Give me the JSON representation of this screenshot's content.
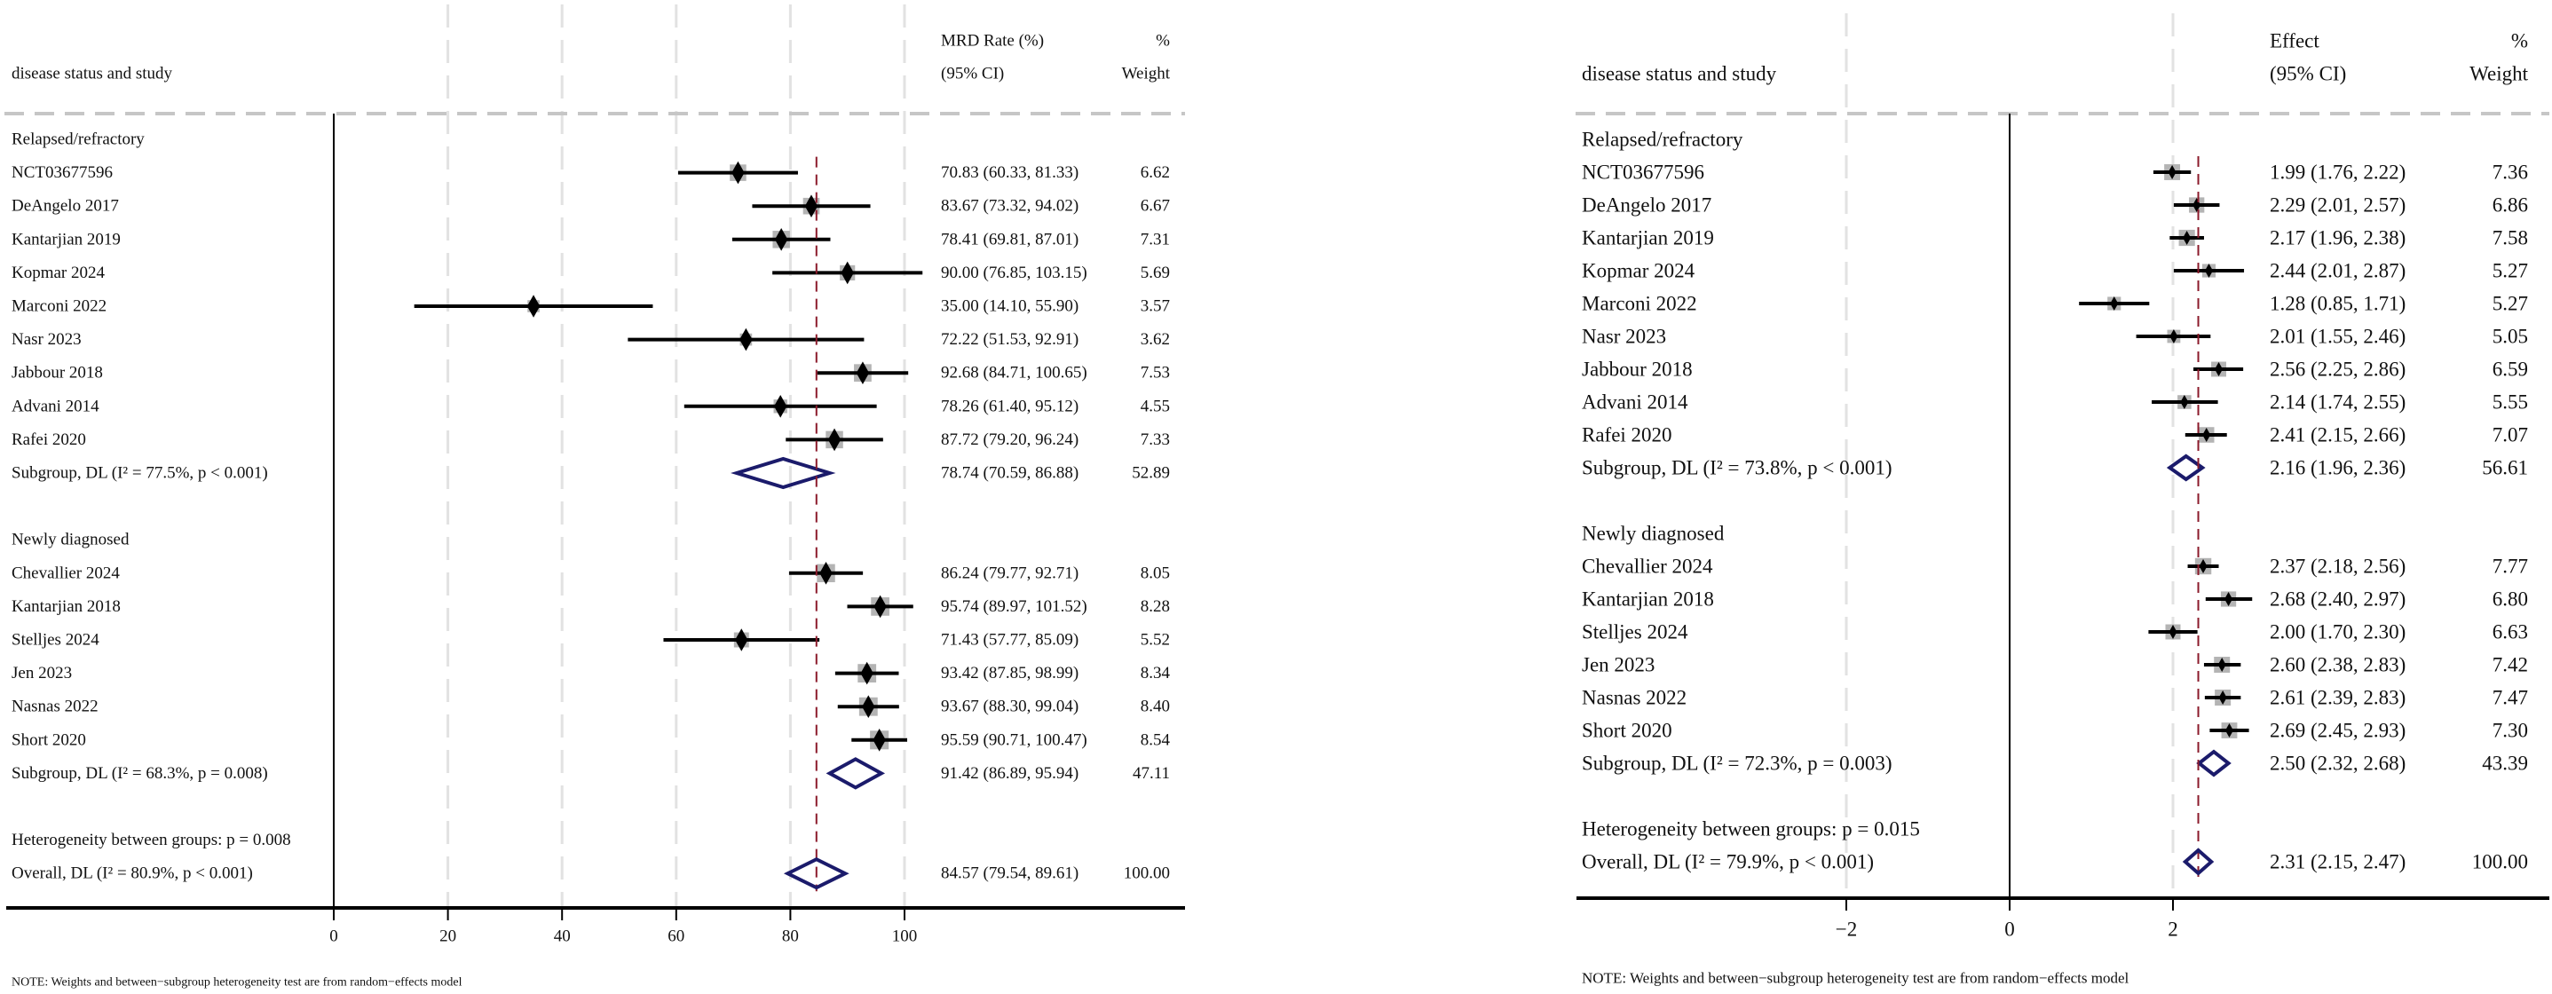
{
  "chart_data": [
    {
      "type": "forest",
      "header": {
        "study_col": "disease status and study",
        "est_line1": "MRD Rate (%)",
        "est_line2": "(95% CI)",
        "w_line1": "%",
        "w_line2": "Weight"
      },
      "xlim": [
        0,
        100
      ],
      "ticks": [
        "0",
        "20",
        "40",
        "60",
        "80",
        "100"
      ],
      "tick_values": [
        0,
        20,
        40,
        60,
        80,
        100
      ],
      "ref_line": 84.57,
      "groups": [
        {
          "label": "Relapsed/refractory",
          "studies": [
            {
              "name": "NCT03677596",
              "est": 70.83,
              "lo": 60.33,
              "hi": 81.33,
              "ci_text": "70.83 (60.33, 81.33)",
              "weight": "6.62"
            },
            {
              "name": "DeAngelo 2017",
              "est": 83.67,
              "lo": 73.32,
              "hi": 94.02,
              "ci_text": "83.67 (73.32, 94.02)",
              "weight": "6.67"
            },
            {
              "name": "Kantarjian 2019",
              "est": 78.41,
              "lo": 69.81,
              "hi": 87.01,
              "ci_text": "78.41 (69.81, 87.01)",
              "weight": "7.31"
            },
            {
              "name": "Kopmar 2024",
              "est": 90.0,
              "lo": 76.85,
              "hi": 103.15,
              "ci_text": "90.00 (76.85, 103.15)",
              "weight": "5.69"
            },
            {
              "name": "Marconi 2022",
              "est": 35.0,
              "lo": 14.1,
              "hi": 55.9,
              "ci_text": "35.00 (14.10, 55.90)",
              "weight": "3.57"
            },
            {
              "name": "Nasr 2023",
              "est": 72.22,
              "lo": 51.53,
              "hi": 92.91,
              "ci_text": "72.22 (51.53, 92.91)",
              "weight": "3.62"
            },
            {
              "name": "Jabbour 2018",
              "est": 92.68,
              "lo": 84.71,
              "hi": 100.65,
              "ci_text": "92.68 (84.71, 100.65)",
              "weight": "7.53"
            },
            {
              "name": "Advani 2014",
              "est": 78.26,
              "lo": 61.4,
              "hi": 95.12,
              "ci_text": "78.26 (61.40, 95.12)",
              "weight": "4.55"
            },
            {
              "name": "Rafei 2020",
              "est": 87.72,
              "lo": 79.2,
              "hi": 96.24,
              "ci_text": "87.72 (79.20, 96.24)",
              "weight": "7.33"
            }
          ],
          "subgroup": {
            "label": "Subgroup, DL (I² = 77.5%, p < 0.001)",
            "est": 78.74,
            "lo": 70.59,
            "hi": 86.88,
            "ci_text": "78.74 (70.59, 86.88)",
            "weight": "52.89"
          }
        },
        {
          "label": "Newly diagnosed",
          "studies": [
            {
              "name": "Chevallier 2024",
              "est": 86.24,
              "lo": 79.77,
              "hi": 92.71,
              "ci_text": "86.24 (79.77, 92.71)",
              "weight": "8.05"
            },
            {
              "name": "Kantarjian 2018",
              "est": 95.74,
              "lo": 89.97,
              "hi": 101.52,
              "ci_text": "95.74 (89.97, 101.52)",
              "weight": "8.28"
            },
            {
              "name": "Stelljes 2024",
              "est": 71.43,
              "lo": 57.77,
              "hi": 85.09,
              "ci_text": "71.43 (57.77, 85.09)",
              "weight": "5.52"
            },
            {
              "name": "Jen 2023",
              "est": 93.42,
              "lo": 87.85,
              "hi": 98.99,
              "ci_text": "93.42 (87.85, 98.99)",
              "weight": "8.34"
            },
            {
              "name": "Nasnas 2022",
              "est": 93.67,
              "lo": 88.3,
              "hi": 99.04,
              "ci_text": "93.67 (88.30, 99.04)",
              "weight": "8.40"
            },
            {
              "name": "Short 2020",
              "est": 95.59,
              "lo": 90.71,
              "hi": 100.47,
              "ci_text": "95.59 (90.71, 100.47)",
              "weight": "8.54"
            }
          ],
          "subgroup": {
            "label": "Subgroup, DL (I² = 68.3%, p = 0.008)",
            "est": 91.42,
            "lo": 86.89,
            "hi": 95.94,
            "ci_text": "91.42 (86.89, 95.94)",
            "weight": "47.11"
          }
        }
      ],
      "heterogeneity": "Heterogeneity between groups: p = 0.008",
      "overall": {
        "label": "Overall, DL (I² = 80.9%, p < 0.001)",
        "est": 84.57,
        "lo": 79.54,
        "hi": 89.61,
        "ci_text": "84.57 (79.54, 89.61)",
        "weight": "100.00"
      },
      "note": "NOTE: Weights and between−subgroup heterogeneity test are from random−effects model"
    },
    {
      "type": "forest",
      "header": {
        "study_col": "disease status and study",
        "est_line1": "Effect",
        "est_line2": "(95% CI)",
        "w_line1": "%",
        "w_line2": "Weight"
      },
      "xlim": [
        -2,
        2
      ],
      "ticks": [
        "−2",
        "0",
        "2"
      ],
      "tick_values": [
        -2,
        0,
        2
      ],
      "ref_line": 2.31,
      "groups": [
        {
          "label": "Relapsed/refractory",
          "studies": [
            {
              "name": "NCT03677596",
              "est": 1.99,
              "lo": 1.76,
              "hi": 2.22,
              "ci_text": "1.99 (1.76, 2.22)",
              "weight": "7.36"
            },
            {
              "name": "DeAngelo 2017",
              "est": 2.29,
              "lo": 2.01,
              "hi": 2.57,
              "ci_text": "2.29 (2.01, 2.57)",
              "weight": "6.86"
            },
            {
              "name": "Kantarjian 2019",
              "est": 2.17,
              "lo": 1.96,
              "hi": 2.38,
              "ci_text": "2.17 (1.96, 2.38)",
              "weight": "7.58"
            },
            {
              "name": "Kopmar 2024",
              "est": 2.44,
              "lo": 2.01,
              "hi": 2.87,
              "ci_text": "2.44 (2.01, 2.87)",
              "weight": "5.27"
            },
            {
              "name": "Marconi 2022",
              "est": 1.28,
              "lo": 0.85,
              "hi": 1.71,
              "ci_text": "1.28 (0.85, 1.71)",
              "weight": "5.27"
            },
            {
              "name": "Nasr 2023",
              "est": 2.01,
              "lo": 1.55,
              "hi": 2.46,
              "ci_text": "2.01 (1.55, 2.46)",
              "weight": "5.05"
            },
            {
              "name": "Jabbour 2018",
              "est": 2.56,
              "lo": 2.25,
              "hi": 2.86,
              "ci_text": "2.56 (2.25, 2.86)",
              "weight": "6.59"
            },
            {
              "name": "Advani 2014",
              "est": 2.14,
              "lo": 1.74,
              "hi": 2.55,
              "ci_text": "2.14 (1.74, 2.55)",
              "weight": "5.55"
            },
            {
              "name": "Rafei 2020",
              "est": 2.41,
              "lo": 2.15,
              "hi": 2.66,
              "ci_text": "2.41 (2.15, 2.66)",
              "weight": "7.07"
            }
          ],
          "subgroup": {
            "label": "Subgroup, DL (I² = 73.8%, p < 0.001)",
            "est": 2.16,
            "lo": 1.96,
            "hi": 2.36,
            "ci_text": "2.16 (1.96, 2.36)",
            "weight": "56.61"
          }
        },
        {
          "label": "Newly diagnosed",
          "studies": [
            {
              "name": "Chevallier 2024",
              "est": 2.37,
              "lo": 2.18,
              "hi": 2.56,
              "ci_text": "2.37 (2.18, 2.56)",
              "weight": "7.77"
            },
            {
              "name": "Kantarjian 2018",
              "est": 2.68,
              "lo": 2.4,
              "hi": 2.97,
              "ci_text": "2.68 (2.40, 2.97)",
              "weight": "6.80"
            },
            {
              "name": "Stelljes 2024",
              "est": 2.0,
              "lo": 1.7,
              "hi": 2.3,
              "ci_text": "2.00 (1.70, 2.30)",
              "weight": "6.63"
            },
            {
              "name": "Jen 2023",
              "est": 2.6,
              "lo": 2.38,
              "hi": 2.83,
              "ci_text": "2.60 (2.38, 2.83)",
              "weight": "7.42"
            },
            {
              "name": "Nasnas 2022",
              "est": 2.61,
              "lo": 2.39,
              "hi": 2.83,
              "ci_text": "2.61 (2.39, 2.83)",
              "weight": "7.47"
            },
            {
              "name": "Short 2020",
              "est": 2.69,
              "lo": 2.45,
              "hi": 2.93,
              "ci_text": "2.69 (2.45, 2.93)",
              "weight": "7.30"
            }
          ],
          "subgroup": {
            "label": "Subgroup, DL (I² = 72.3%, p = 0.003)",
            "est": 2.5,
            "lo": 2.32,
            "hi": 2.68,
            "ci_text": "2.50 (2.32, 2.68)",
            "weight": "43.39"
          }
        }
      ],
      "heterogeneity": "Heterogeneity between groups: p = 0.015",
      "overall": {
        "label": "Overall, DL (I² = 79.9%, p < 0.001)",
        "est": 2.31,
        "lo": 2.15,
        "hi": 2.47,
        "ci_text": "2.31 (2.15, 2.47)",
        "weight": "100.00"
      },
      "note": "NOTE: Weights and between−subgroup heterogeneity test are from random−effects model"
    }
  ],
  "colors": {
    "diamond": "#1b1b6b",
    "ref_line": "#8b1a2b",
    "box": "#b4b4b4",
    "grid": "#e2e2e2",
    "header_rule": "#c6c6c6"
  }
}
